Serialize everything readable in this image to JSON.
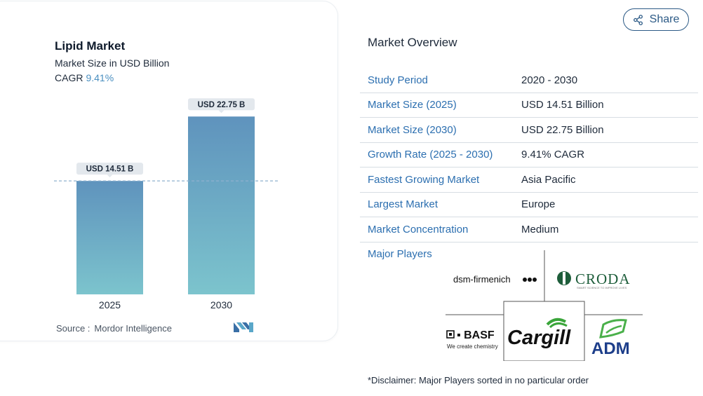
{
  "chart_data": {
    "type": "bar",
    "title": "Lipid Market",
    "subtitle": "Market Size in USD Billion",
    "cagr_label": "CAGR",
    "cagr_value": "9.41%",
    "categories": [
      "2025",
      "2030"
    ],
    "values": [
      14.51,
      22.75
    ],
    "data_labels": [
      "USD 14.51 B",
      "USD 22.75 B"
    ],
    "ylim": [
      0,
      26
    ],
    "grid": false,
    "reference_line": 14.51,
    "colors": {
      "bar_top": "#5f93bd",
      "bar_bottom": "#7cc4cd",
      "label_bg": "#e3e8ed",
      "dash": "#8fb2cf"
    }
  },
  "source": {
    "label": "Source :",
    "value": "Mordor Intelligence"
  },
  "share_button": {
    "label": "Share",
    "icon": "share-icon"
  },
  "overview": {
    "title": "Market Overview",
    "rows": [
      {
        "label": "Study Period",
        "value": "2020 - 2030"
      },
      {
        "label": "Market Size (2025)",
        "value": "USD 14.51 Billion"
      },
      {
        "label": "Market Size (2030)",
        "value": "USD 22.75 Billion"
      },
      {
        "label": "Growth Rate (2025 - 2030)",
        "value": "9.41% CAGR"
      },
      {
        "label": "Fastest Growing Market",
        "value": "Asia Pacific"
      },
      {
        "label": "Largest Market",
        "value": "Europe"
      },
      {
        "label": "Market Concentration",
        "value": "Medium"
      }
    ],
    "major_players_label": "Major Players",
    "players": {
      "dsm": "dsm-firmenich",
      "croda": "CRODA",
      "croda_tagline": "SMART SCIENCE TO IMPROVE LIVES",
      "basf": "BASF",
      "basf_tagline": "We create chemistry",
      "cargill": "Cargill",
      "adm": "ADM"
    },
    "disclaimer": "*Disclaimer: Major Players sorted in no particular order"
  },
  "accent_colors": {
    "link_blue": "#2c6fb0",
    "share_border": "#2c5a86",
    "cagr_blue": "#4a8fc0"
  }
}
